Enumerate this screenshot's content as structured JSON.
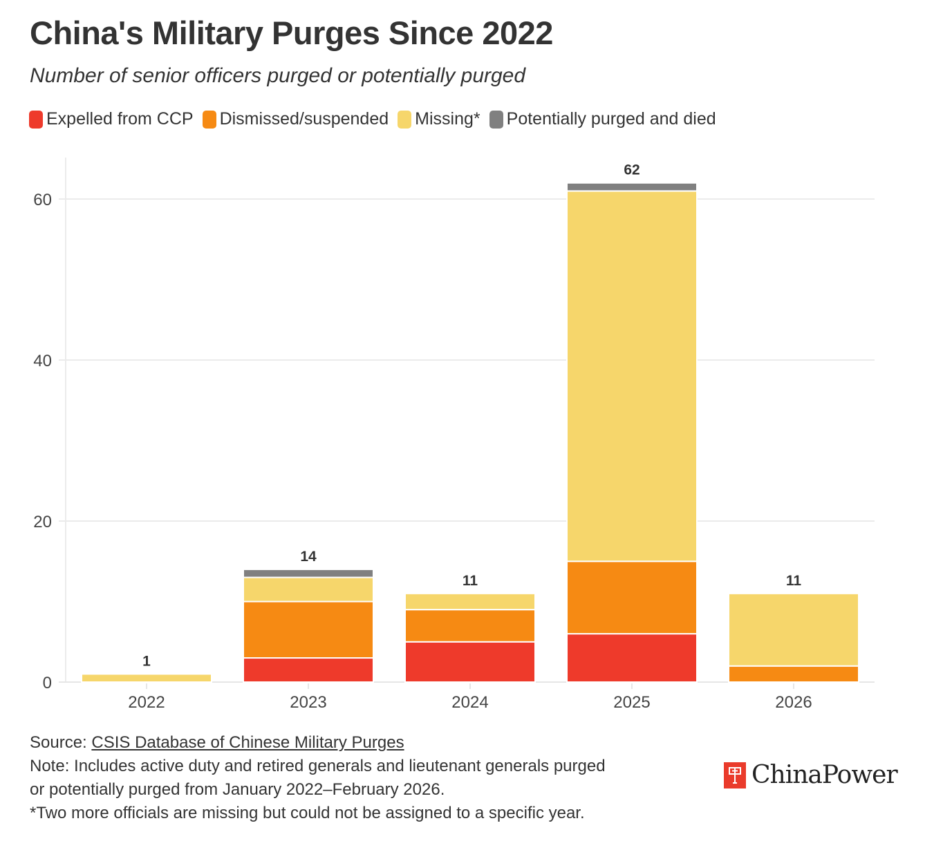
{
  "header": {
    "title": "China's Military Purges Since 2022",
    "subtitle": "Number of senior officers purged or potentially purged"
  },
  "legend": [
    {
      "label": "Expelled from CCP",
      "color": "#ee3a2b"
    },
    {
      "label": "Dismissed/suspended",
      "color": "#f68a13"
    },
    {
      "label": "Missing*",
      "color": "#f6d66b"
    },
    {
      "label": "Potentially purged and died",
      "color": "#808080"
    }
  ],
  "chart_data": {
    "type": "bar",
    "stacked": true,
    "title": "China's Military Purges Since 2022",
    "subtitle": "Number of senior officers purged or potentially purged",
    "xlabel": "",
    "ylabel": "",
    "categories": [
      "2022",
      "2023",
      "2024",
      "2025",
      "2026"
    ],
    "series": [
      {
        "name": "Expelled from CCP",
        "color": "#ee3a2b",
        "values": [
          0,
          3,
          5,
          6,
          0
        ]
      },
      {
        "name": "Dismissed/suspended",
        "color": "#f68a13",
        "values": [
          0,
          7,
          4,
          9,
          2
        ]
      },
      {
        "name": "Missing*",
        "color": "#f6d66b",
        "values": [
          1,
          3,
          2,
          46,
          9
        ]
      },
      {
        "name": "Potentially purged and died",
        "color": "#808080",
        "values": [
          0,
          1,
          0,
          1,
          0
        ]
      }
    ],
    "totals": [
      1,
      14,
      11,
      62,
      11
    ],
    "ylim": [
      0,
      65
    ],
    "yticks": [
      0,
      20,
      40,
      60
    ],
    "grid": true,
    "legend_position": "top-left"
  },
  "footer": {
    "source_prefix": "Source: ",
    "source_link": "CSIS Database of Chinese Military Purges",
    "note_line1": "Note: Includes active duty and retired generals and lieutenant generals purged",
    "note_line2": "or potentially purged from January 2022–February 2026.",
    "footnote": "*Two more officials are missing but could not be assigned to a specific year."
  },
  "brand": {
    "name": "ChinaPower",
    "logo_icon": "chinapower-logo-icon",
    "color": "#ea3b2b"
  }
}
